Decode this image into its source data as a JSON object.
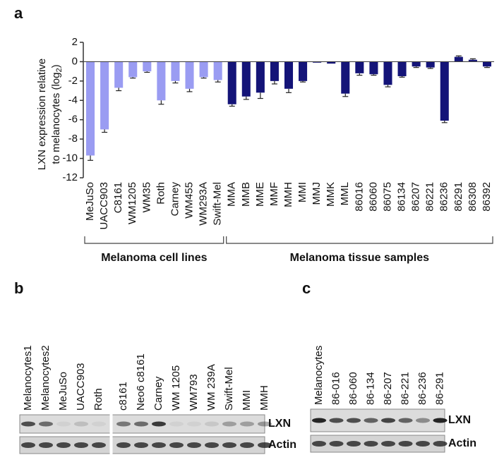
{
  "chart_data": {
    "type": "bar",
    "panel": "a",
    "ylabel": {
      "line1": "LXN expression relative",
      "line2": "to melanocytes (log",
      "sub": "2",
      "close": ")"
    },
    "categories": [
      "MeJuSo",
      "UACC903",
      "C8161",
      "WM1205",
      "WM35",
      "Roth",
      "Carney",
      "WM455",
      "WM293A",
      "Swift-Mel",
      "MMA",
      "MMB",
      "MME",
      "MMF",
      "MMH",
      "MMI",
      "MMJ",
      "MMK",
      "MML",
      "86016",
      "86060",
      "86075",
      "86134",
      "86207",
      "86221",
      "86236",
      "86291",
      "86308",
      "86392"
    ],
    "values": [
      -9.7,
      -7,
      -2.7,
      -1.6,
      -1,
      -4,
      -2,
      -2.8,
      -1.6,
      -1.9,
      -4.4,
      -3.6,
      -3.2,
      -2,
      -2.8,
      -2,
      -0.1,
      -0.2,
      -3.3,
      -1.2,
      -1.3,
      -2.4,
      -1.5,
      -0.5,
      -0.6,
      -6.1,
      0.5,
      0.2,
      -0.5
    ],
    "errors": [
      0.5,
      0.3,
      0.3,
      0.1,
      0.1,
      0.4,
      0.2,
      0.3,
      0.1,
      0.2,
      0.2,
      0.3,
      0.6,
      0.3,
      0.4,
      0.1,
      0,
      0,
      0.3,
      0.2,
      0.1,
      0.2,
      0.1,
      0.1,
      0.1,
      0.2,
      0.1,
      0.1,
      0.1
    ],
    "colors": [
      "#9a9cf2",
      "#9a9cf2",
      "#9a9cf2",
      "#9a9cf2",
      "#9a9cf2",
      "#9a9cf2",
      "#9a9cf2",
      "#9a9cf2",
      "#9a9cf2",
      "#9a9cf2",
      "#141478",
      "#141478",
      "#141478",
      "#141478",
      "#141478",
      "#141478",
      "#141478",
      "#141478",
      "#141478",
      "#141478",
      "#141478",
      "#141478",
      "#141478",
      "#141478",
      "#141478",
      "#141478",
      "#141478",
      "#141478",
      "#141478"
    ],
    "groups": [
      "Melanoma cell lines",
      "Melanoma tissue samples"
    ],
    "ylim": [
      -12,
      2
    ],
    "yticks": [
      2,
      0,
      -2,
      -4,
      -6,
      -8,
      -10,
      -12
    ]
  },
  "blots": [
    {
      "panel": "b",
      "lanes": [
        "Melanocytes1",
        "Melanocytes2",
        "MeJuSo",
        "UACC903",
        "Roth",
        "c8161",
        "Neo6 c8161",
        "Carney",
        "WM 1205",
        "WM793",
        "WM 239A",
        "Swift-Mel",
        "MMI",
        "MMH"
      ],
      "rows": [
        "LXN",
        "Actin"
      ]
    },
    {
      "panel": "c",
      "lanes": [
        "Melanocytes",
        "86-016",
        "86-060",
        "86-134",
        "86-207",
        "86-221",
        "86-236",
        "86-291"
      ],
      "rows": [
        "LXN",
        "Actin"
      ]
    }
  ]
}
